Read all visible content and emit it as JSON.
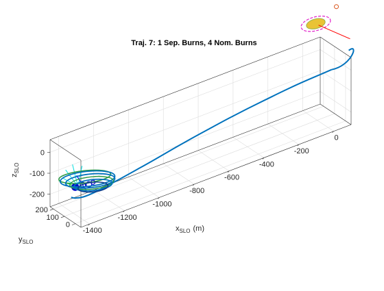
{
  "chart_data": {
    "type": "line",
    "title": "Traj. 7: 1 Sep. Burns, 4 Nom. Burns",
    "xlabel": {
      "main": "x",
      "sub": "SLO",
      "unit": "(m)"
    },
    "ylabel": {
      "main": "y",
      "sub": "SLO"
    },
    "zlabel": {
      "main": "z",
      "sub": "SLO"
    },
    "xlim": [
      -1450,
      100
    ],
    "ylim": [
      -50,
      230
    ],
    "zlim": [
      -260,
      60
    ],
    "x_ticks": [
      -1400,
      -1200,
      -1000,
      -800,
      -600,
      -400,
      -200,
      0
    ],
    "y_ticks": [
      0,
      100,
      200
    ],
    "z_ticks": [
      -200,
      -100,
      0
    ],
    "grid": true,
    "colors": {
      "trajectory": "#0072bd",
      "loops": "#0d3d8c",
      "loops_alt": "#2d9a46",
      "target_body": "#e9c335",
      "target_body_edge": "#9ab04a",
      "target_orbit": "#e020c8",
      "burn_vector": "#ff0000",
      "start_marker": "#d95319",
      "sep_vector": "#00e0e0",
      "green_vector": "#3ddc3d",
      "blue_vector": "#0000ff",
      "burn_marker": "#0000cc"
    },
    "series": [
      {
        "role": "main",
        "x": [
          20,
          -50,
          -150,
          -250,
          -350,
          -450,
          -550,
          -650,
          -750,
          -850,
          -950,
          -1050,
          -1150,
          -1250,
          -1320,
          -1370,
          -1395
        ],
        "y": [
          0,
          2,
          5,
          10,
          15,
          22,
          30,
          38,
          48,
          58,
          68,
          80,
          92,
          104,
          114,
          122,
          126
        ],
        "z": [
          10,
          6,
          0,
          -10,
          -22,
          -36,
          -52,
          -70,
          -90,
          -112,
          -135,
          -158,
          -180,
          -200,
          -210,
          -206,
          -196
        ]
      }
    ]
  }
}
